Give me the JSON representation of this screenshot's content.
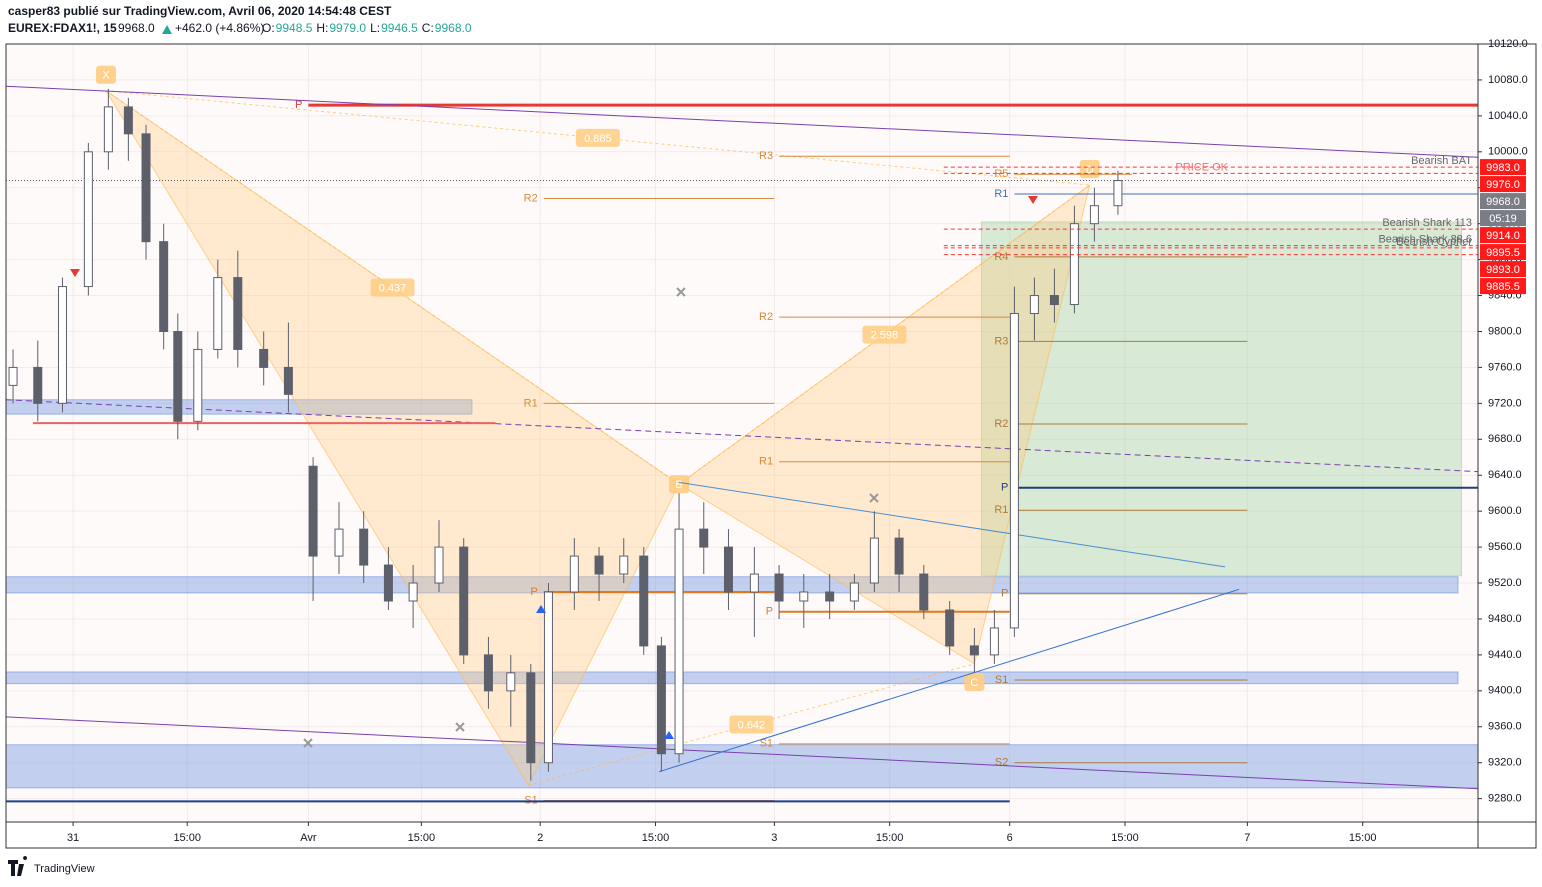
{
  "header": {
    "publisher": "casper83 publié sur TradingView.com, Avril 06, 2020 14:54:48 CEST",
    "symbol": "EUREX:FDAX1!, 15",
    "last": "9968.0",
    "change": "+462.0 (+4.86%)",
    "ohlc": [
      {
        "label": "O:",
        "value": "9948.5"
      },
      {
        "label": "H:",
        "value": "9979.0"
      },
      {
        "label": "L:",
        "value": "9946.5"
      },
      {
        "label": "C:",
        "value": "9968.0"
      }
    ]
  },
  "footer": {
    "brand": "TradingView"
  },
  "chart_data": {
    "type": "candlestick",
    "x": [
      -0.51,
      -0.3,
      -0.09,
      0.13,
      0.3,
      0.47,
      0.62,
      0.77,
      0.89,
      1.06,
      1.23,
      1.4,
      1.62,
      1.83,
      2.04,
      2.26,
      2.47,
      2.68,
      2.89,
      3.11,
      3.32,
      3.53,
      3.72,
      3.89,
      4.04,
      4.26,
      4.47,
      4.68,
      4.85,
      5.0,
      5.15,
      5.36,
      5.57,
      5.79,
      6.0,
      6.21,
      6.43,
      6.64,
      6.81,
      7.02,
      7.23,
      7.45,
      7.66,
      7.83,
      8.0,
      8.17,
      8.34,
      8.51,
      8.68,
      8.88
    ],
    "open": [
      9740,
      9760,
      9720,
      9850,
      10000,
      10050,
      10020,
      9900,
      9800,
      9700,
      9780,
      9860,
      9780,
      9760,
      9650,
      9550,
      9580,
      9540,
      9500,
      9520,
      9560,
      9440,
      9400,
      9420,
      9320,
      9510,
      9550,
      9530,
      9550,
      9450,
      9330,
      9580,
      9560,
      9510,
      9530,
      9500,
      9510,
      9500,
      9520,
      9570,
      9530,
      9490,
      9450,
      9440,
      9470,
      9820,
      9840,
      9830,
      9920,
      9940
    ],
    "high": [
      9780,
      9790,
      9860,
      10010,
      10070,
      10060,
      10030,
      9920,
      9820,
      9800,
      9880,
      9890,
      9800,
      9810,
      9660,
      9610,
      9600,
      9560,
      9540,
      9590,
      9570,
      9460,
      9440,
      9430,
      9520,
      9570,
      9560,
      9570,
      9560,
      9460,
      9620,
      9610,
      9580,
      9560,
      9540,
      9530,
      9530,
      9530,
      9600,
      9580,
      9540,
      9500,
      9470,
      9490,
      9850,
      9860,
      9870,
      9940,
      9960,
      9979
    ],
    "low": [
      9720,
      9700,
      9710,
      9840,
      9980,
      9990,
      9880,
      9780,
      9680,
      9690,
      9770,
      9760,
      9740,
      9710,
      9500,
      9530,
      9520,
      9490,
      9470,
      9510,
      9430,
      9380,
      9360,
      9300,
      9310,
      9490,
      9500,
      9520,
      9440,
      9310,
      9320,
      9530,
      9490,
      9460,
      9480,
      9470,
      9480,
      9490,
      9510,
      9510,
      9480,
      9440,
      9420,
      9430,
      9460,
      9790,
      9810,
      9820,
      9900,
      9930
    ],
    "close": [
      9760,
      9720,
      9850,
      10000,
      10050,
      10020,
      9900,
      9800,
      9700,
      9780,
      9860,
      9780,
      9760,
      9730,
      9550,
      9580,
      9540,
      9500,
      9520,
      9560,
      9440,
      9400,
      9420,
      9320,
      9510,
      9550,
      9530,
      9550,
      9450,
      9330,
      9580,
      9560,
      9510,
      9530,
      9500,
      9510,
      9500,
      9520,
      9570,
      9530,
      9490,
      9450,
      9440,
      9470,
      9820,
      9840,
      9830,
      9920,
      9940,
      9968
    ],
    "color": "#5d606b",
    "xlim": [
      -0.57,
      11.94
    ],
    "xticks": [
      {
        "value": 0,
        "label": "31"
      },
      {
        "value": 0.97,
        "label": "15:00"
      },
      {
        "value": 2.0,
        "label": "Avr"
      },
      {
        "value": 2.96,
        "label": "15:00"
      },
      {
        "value": 3.97,
        "label": "2"
      },
      {
        "value": 4.95,
        "label": "15:00"
      },
      {
        "value": 5.96,
        "label": "3"
      },
      {
        "value": 6.94,
        "label": "15:00"
      },
      {
        "value": 7.96,
        "label": "6"
      },
      {
        "value": 8.94,
        "label": "15:00"
      },
      {
        "value": 9.98,
        "label": "7"
      },
      {
        "value": 10.96,
        "label": "15:00"
      }
    ],
    "ylim": [
      9254,
      10120
    ],
    "yticks": [
      {
        "value": 9280,
        "label": "9280.0"
      },
      {
        "value": 9320,
        "label": "9320.0"
      },
      {
        "value": 9360,
        "label": "9360.0"
      },
      {
        "value": 9400,
        "label": "9400.0"
      },
      {
        "value": 9440,
        "label": "9440.0"
      },
      {
        "value": 9480,
        "label": "9480.0"
      },
      {
        "value": 9520,
        "label": "9520.0"
      },
      {
        "value": 9560,
        "label": "9560.0"
      },
      {
        "value": 9600,
        "label": "9600.0"
      },
      {
        "value": 9640,
        "label": "9640.0"
      },
      {
        "value": 9680,
        "label": "9680.0"
      },
      {
        "value": 9720,
        "label": "9720.0"
      },
      {
        "value": 9760,
        "label": "9760.0"
      },
      {
        "value": 9800,
        "label": "9800.0"
      },
      {
        "value": 9840,
        "label": "9840.0"
      },
      {
        "value": 9880,
        "label": "9880.0"
      },
      {
        "value": 9920,
        "label": "9920.0"
      },
      {
        "value": 9960,
        "label": "9960.0"
      },
      {
        "value": 10000,
        "label": "10000.0"
      },
      {
        "value": 10040,
        "label": "10040.0"
      },
      {
        "value": 10080,
        "label": "10080.0"
      },
      {
        "value": 10120,
        "label": "10120.0"
      }
    ],
    "grid": true,
    "zones": [
      {
        "from": 9708,
        "to": 9724,
        "x": [
          -0.57,
          3.39
        ],
        "color": "#7b9be0"
      },
      {
        "from": 9509,
        "to": 9527,
        "x": [
          -0.57,
          11.77
        ],
        "color": "#7b9be0"
      },
      {
        "from": 9408,
        "to": 9421,
        "x": [
          -0.57,
          11.77
        ],
        "color": "#7b9be0"
      },
      {
        "from": 9292,
        "to": 9340,
        "x": [
          -0.57,
          11.94
        ],
        "color": "#7b9be0"
      },
      {
        "from": 9528,
        "to": 9922,
        "x": [
          7.72,
          11.8
        ],
        "color": "#a9d5a9"
      }
    ],
    "lines": [
      {
        "x": [
          -0.57,
          11.94
        ],
        "y": [
          10073,
          9994
        ],
        "color": "#7a3fb0"
      },
      {
        "x": [
          -0.57,
          11.94
        ],
        "y": [
          9371,
          9291
        ],
        "color": "#7a3fb0"
      },
      {
        "x": [
          -0.57,
          11.94
        ],
        "y": [
          9724,
          9644
        ],
        "color": "#7a3fb0",
        "dash": true
      },
      {
        "x": [
          4.98,
          9.91
        ],
        "y": [
          9310,
          9513
        ],
        "color": "#2f6fd0"
      },
      {
        "x": [
          5.15,
          9.79
        ],
        "y": [
          9632,
          9538
        ],
        "color": "#4a8fd0"
      },
      {
        "x": [
          -0.57,
          7.96
        ],
        "y": [
          9277,
          9277
        ],
        "color": "#1e3f8a",
        "width": 2
      },
      {
        "x": [
          -0.34,
          3.59
        ],
        "y": [
          9698,
          9698
        ],
        "color": "#ef6060",
        "width": 2
      },
      {
        "x": [
          -0.57,
          11.94
        ],
        "y": [
          9968,
          9968
        ],
        "color": "#555555",
        "dot": true
      }
    ],
    "levels": [
      {
        "label": "P",
        "value": 10052,
        "from": 2.0,
        "to": 11.94,
        "color": "#e53935",
        "width": 3
      },
      {
        "label": "R3",
        "value": 9995,
        "from": 6.0,
        "to": 7.96,
        "color": "#d98a3a"
      },
      {
        "label": "R2",
        "value": 9948,
        "from": 4.0,
        "to": 5.96,
        "color": "#d98a3a"
      },
      {
        "label": "R2",
        "value": 9816,
        "from": 6.0,
        "to": 7.96,
        "color": "#d98a3a"
      },
      {
        "label": "R1",
        "value": 9720,
        "from": 4.0,
        "to": 5.96,
        "color": "#d98a3a"
      },
      {
        "label": "R1",
        "value": 9655,
        "from": 6.0,
        "to": 7.96,
        "color": "#d98a3a"
      },
      {
        "label": "P",
        "value": 9510,
        "from": 4.0,
        "to": 5.96,
        "color": "#e07a20",
        "width": 2
      },
      {
        "label": "P",
        "value": 9488,
        "from": 6.0,
        "to": 7.96,
        "color": "#e07a20",
        "width": 2
      },
      {
        "label": "S1",
        "value": 9341,
        "from": 6.0,
        "to": 7.96,
        "color": "#d98a3a"
      },
      {
        "label": "S1",
        "value": 9278,
        "from": 4.0,
        "to": 5.96,
        "color": "#d98a3a"
      },
      {
        "label": "R5",
        "value": 9975,
        "from": 8.0,
        "to": 9.0,
        "color": "#d98a3a"
      },
      {
        "label": "R1",
        "value": 9953,
        "from": 8.0,
        "to": 11.94,
        "color": "#3f6fb5"
      },
      {
        "label": "R4",
        "value": 9883,
        "from": 8.0,
        "to": 9.98,
        "color": "#b07a3a"
      },
      {
        "label": "R3",
        "value": 9789,
        "from": 8.0,
        "to": 9.98,
        "color": "#b07a3a"
      },
      {
        "label": "R2",
        "value": 9697,
        "from": 8.0,
        "to": 9.98,
        "color": "#b07a3a"
      },
      {
        "label": "P",
        "value": 9626,
        "from": 8.0,
        "to": 11.94,
        "color": "#1e3f7a",
        "width": 2
      },
      {
        "label": "R1",
        "value": 9601,
        "from": 8.0,
        "to": 9.98,
        "color": "#b07a3a"
      },
      {
        "label": "P",
        "value": 9508,
        "from": 8.0,
        "to": 9.98,
        "color": "#b07a3a"
      },
      {
        "label": "S1",
        "value": 9412,
        "from": 8.0,
        "to": 9.98,
        "color": "#b07a3a"
      },
      {
        "label": "S2",
        "value": 9320,
        "from": 8.0,
        "to": 9.98,
        "color": "#b07a3a"
      }
    ],
    "pattern_points": [
      {
        "x": 0.28,
        "y": 10068,
        "label": "X"
      },
      {
        "x": 3.87,
        "y": 9295
      },
      {
        "x": 5.15,
        "y": 9630,
        "label": "B"
      },
      {
        "x": 7.66,
        "y": 9430,
        "label": "C"
      },
      {
        "x": 8.64,
        "y": 9963,
        "label": "D"
      }
    ],
    "ratios": [
      "0.437",
      "0.885",
      "2.598",
      "0.642"
    ],
    "pattern_tags": [
      {
        "label": "Bearish BAT",
        "value": 9983
      },
      {
        "label": "PRICE OK",
        "value": 9976
      },
      {
        "label": "Bearish Shark 113",
        "value": 9914
      },
      {
        "label": "Bearish Shark 88.6",
        "value": 9895.5
      },
      {
        "label": "Bearish Cypher",
        "value": 9893
      }
    ],
    "price_labels": [
      {
        "value": 9983,
        "label": "9983.0",
        "color": "#ff1a1a"
      },
      {
        "value": 9976,
        "label": "9976.0",
        "color": "#ff1a1a"
      },
      {
        "value": 9968,
        "label": "9968.0",
        "color": "#7a7d85"
      },
      {
        "value": 9914,
        "label": "9914.0",
        "color": "#ff1a1a"
      },
      {
        "value": 9895.5,
        "label": "9895.5",
        "color": "#ff1a1a"
      },
      {
        "value": 9893,
        "label": "9893.0",
        "color": "#ff1a1a"
      },
      {
        "value": 9885.5,
        "label": "9885.5",
        "color": "#ff1a1a"
      }
    ],
    "countdown": "05:19"
  }
}
